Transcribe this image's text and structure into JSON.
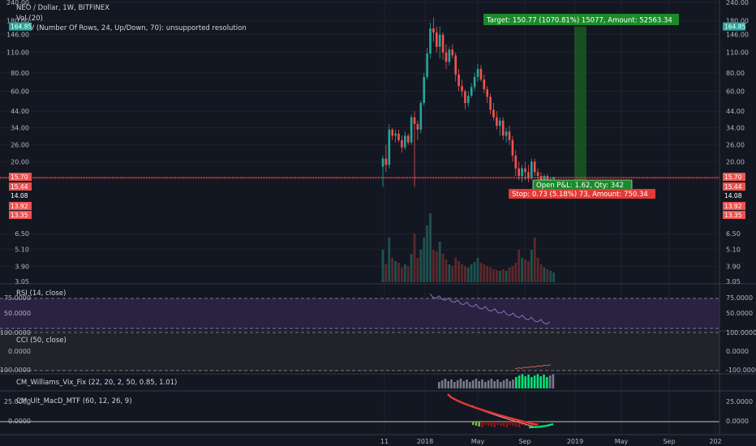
{
  "header": {
    "symbol_line": "NEO / Dollar, 1W, BITFINEX",
    "vol_label": "Vol (20)",
    "vpsv_label": "VPSV (Number Of Rows, 24, Up/Down, 70): unsupported resolution"
  },
  "price_axis": {
    "ticks": [
      "240.00",
      "180.00",
      "146.00",
      "110.00",
      "80.00",
      "60.00",
      "44.00",
      "34.00",
      "26.00",
      "20.00",
      "15.70",
      "15.44",
      "14.08",
      "13.92",
      "13.35",
      "6.50",
      "5.10",
      "3.90",
      "3.05"
    ],
    "tags": [
      {
        "label": "164.85",
        "value": 164.85,
        "color": "#26a69a"
      },
      {
        "label": "15.70",
        "value": 15.7,
        "color": "#ef5350"
      },
      {
        "label": "15.44",
        "value": 15.44,
        "color": "#ef5350"
      },
      {
        "label": "14.08",
        "value": 14.08,
        "color": "#131722"
      },
      {
        "label": "13.92",
        "value": 13.92,
        "color": "#ef5350"
      },
      {
        "label": "13.35",
        "value": 13.35,
        "color": "#ef5350"
      }
    ]
  },
  "time_axis": [
    "11",
    "2018",
    "May",
    "Sep",
    "2019",
    "May",
    "Sep",
    "202"
  ],
  "position": {
    "target_text": "Target: 150.77 (1070.81%) 15077, Amount: 52563.34",
    "open_pl_text": "Open P&L: 1.62, Qty: 342",
    "stop_text": "Stop: 0.73 (5.18%) 73, Amount: 750.34",
    "entry": 14.08,
    "target": 164.85,
    "stop": 13.35
  },
  "indicators": {
    "rsi": {
      "label": "RSI (14, close)",
      "ticks": [
        "75.0000",
        "50.0000"
      ]
    },
    "cci": {
      "label": "CCI (50, close)",
      "ticks": [
        "100.0000",
        "0.0000",
        "-100.0000"
      ]
    },
    "vix": {
      "label": "CM_Williams_Vix_Fix (22, 20, 2, 50, 0.85, 1.01)"
    },
    "macd": {
      "label": "CM_Ult_MacD_MTF (60, 12, 26, 9)",
      "ticks": [
        "25.0000",
        "0.0000"
      ]
    }
  },
  "colors": {
    "up": "#26a69a",
    "down": "#ef5350",
    "target_zone": "#1b5e20",
    "stop_zone": "#8b1a1a",
    "rsi_band": "#2b2140",
    "vix_green": "#00e676",
    "vix_gray": "#787b86",
    "macd_red": "#e53935"
  },
  "chart_data": {
    "type": "candlestick",
    "symbol": "NEO / Dollar",
    "interval": "1W",
    "exchange": "BITFINEX",
    "y_scale": "log",
    "ylim": [
      3.05,
      240
    ],
    "candles": [
      {
        "o": 18.5,
        "h": 22,
        "l": 13.5,
        "c": 21
      },
      {
        "o": 21,
        "h": 26,
        "l": 17,
        "c": 19
      },
      {
        "o": 19,
        "h": 36,
        "l": 18,
        "c": 33
      },
      {
        "o": 33,
        "h": 34,
        "l": 28,
        "c": 30
      },
      {
        "o": 30,
        "h": 33,
        "l": 27,
        "c": 31
      },
      {
        "o": 31,
        "h": 33,
        "l": 27,
        "c": 28
      },
      {
        "o": 28,
        "h": 30,
        "l": 23,
        "c": 25
      },
      {
        "o": 25,
        "h": 32,
        "l": 24,
        "c": 30
      },
      {
        "o": 30,
        "h": 31,
        "l": 26,
        "c": 27
      },
      {
        "o": 27,
        "h": 42,
        "l": 26,
        "c": 40
      },
      {
        "o": 40,
        "h": 44,
        "l": 13.5,
        "c": 36
      },
      {
        "o": 36,
        "h": 38,
        "l": 28,
        "c": 33
      },
      {
        "o": 33,
        "h": 52,
        "l": 31,
        "c": 50
      },
      {
        "o": 50,
        "h": 80,
        "l": 48,
        "c": 75
      },
      {
        "o": 75,
        "h": 118,
        "l": 72,
        "c": 108
      },
      {
        "o": 108,
        "h": 175,
        "l": 100,
        "c": 160
      },
      {
        "o": 160,
        "h": 190,
        "l": 130,
        "c": 150
      },
      {
        "o": 150,
        "h": 165,
        "l": 110,
        "c": 120
      },
      {
        "o": 120,
        "h": 165,
        "l": 100,
        "c": 145
      },
      {
        "o": 145,
        "h": 150,
        "l": 98,
        "c": 110
      },
      {
        "o": 110,
        "h": 125,
        "l": 85,
        "c": 95
      },
      {
        "o": 95,
        "h": 120,
        "l": 90,
        "c": 115
      },
      {
        "o": 115,
        "h": 125,
        "l": 100,
        "c": 105
      },
      {
        "o": 105,
        "h": 110,
        "l": 70,
        "c": 78
      },
      {
        "o": 78,
        "h": 85,
        "l": 60,
        "c": 65
      },
      {
        "o": 65,
        "h": 72,
        "l": 55,
        "c": 60
      },
      {
        "o": 60,
        "h": 62,
        "l": 45,
        "c": 50
      },
      {
        "o": 50,
        "h": 60,
        "l": 47,
        "c": 56
      },
      {
        "o": 56,
        "h": 68,
        "l": 54,
        "c": 64
      },
      {
        "o": 64,
        "h": 80,
        "l": 60,
        "c": 75
      },
      {
        "o": 75,
        "h": 92,
        "l": 70,
        "c": 85
      },
      {
        "o": 85,
        "h": 90,
        "l": 70,
        "c": 72
      },
      {
        "o": 72,
        "h": 78,
        "l": 58,
        "c": 62
      },
      {
        "o": 62,
        "h": 65,
        "l": 50,
        "c": 55
      },
      {
        "o": 55,
        "h": 58,
        "l": 42,
        "c": 45
      },
      {
        "o": 45,
        "h": 50,
        "l": 38,
        "c": 40
      },
      {
        "o": 40,
        "h": 44,
        "l": 33,
        "c": 35
      },
      {
        "o": 35,
        "h": 40,
        "l": 30,
        "c": 38
      },
      {
        "o": 38,
        "h": 40,
        "l": 28,
        "c": 30
      },
      {
        "o": 30,
        "h": 34,
        "l": 27,
        "c": 32
      },
      {
        "o": 32,
        "h": 35,
        "l": 26,
        "c": 28
      },
      {
        "o": 28,
        "h": 30,
        "l": 20,
        "c": 22
      },
      {
        "o": 22,
        "h": 24,
        "l": 16,
        "c": 18
      },
      {
        "o": 18,
        "h": 20,
        "l": 15,
        "c": 16
      },
      {
        "o": 16,
        "h": 19,
        "l": 14.5,
        "c": 18
      },
      {
        "o": 18,
        "h": 20,
        "l": 15,
        "c": 17
      },
      {
        "o": 17,
        "h": 19,
        "l": 14.5,
        "c": 15.5
      },
      {
        "o": 15.5,
        "h": 21,
        "l": 15,
        "c": 20
      },
      {
        "o": 20,
        "h": 21,
        "l": 16,
        "c": 17
      },
      {
        "o": 17,
        "h": 18,
        "l": 15,
        "c": 16
      },
      {
        "o": 16,
        "h": 17,
        "l": 14.5,
        "c": 15
      },
      {
        "o": 15,
        "h": 16.5,
        "l": 14.5,
        "c": 16
      },
      {
        "o": 16,
        "h": 16.5,
        "l": 14.6,
        "c": 15
      },
      {
        "o": 15,
        "h": 15.8,
        "l": 14.5,
        "c": 15.2
      },
      {
        "o": 15.2,
        "h": 15.8,
        "l": 14.8,
        "c": 15.7
      }
    ]
  }
}
